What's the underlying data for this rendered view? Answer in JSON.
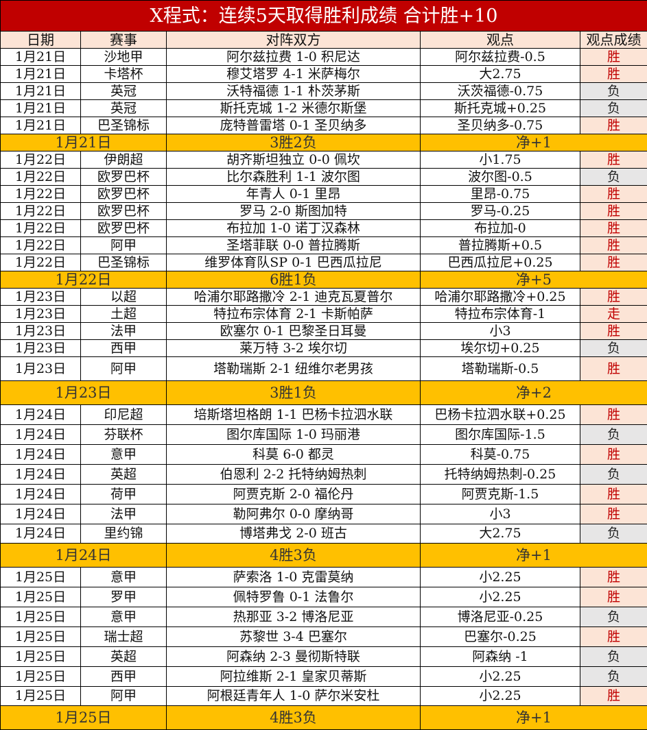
{
  "title": "X程式：连续5天取得胜利成绩 合计胜+10",
  "headers": [
    "日期",
    "赛事",
    "对阵双方",
    "观点",
    "观点成绩"
  ],
  "colors": {
    "title_bg": "#c00000",
    "header_bg": "#fce4d6",
    "summary_bg": "#ffc000",
    "win_bg": "#fce4d6",
    "win_text": "#c00000",
    "lose_bg": "#e7e6e6"
  },
  "groups": [
    {
      "rows": [
        [
          "1月21日",
          "沙地甲",
          "阿尔兹拉费 1-0 积尼达",
          "阿尔兹拉费-0.5",
          "胜"
        ],
        [
          "1月21日",
          "卡塔杯",
          "穆艾塔罗 4-1 米萨梅尔",
          "大2.75",
          "胜"
        ],
        [
          "1月21日",
          "英冠",
          "沃特福德 1-1 朴茨茅斯",
          "沃茨福德-0.75",
          "负"
        ],
        [
          "1月21日",
          "英冠",
          "斯托克城 1-2 米德尔斯堡",
          "斯托克城+0.25",
          "负"
        ],
        [
          "1月21日",
          "巴圣锦标",
          "庞特普雷塔 0-1 圣贝纳多",
          "圣贝纳多-0.75",
          "胜"
        ]
      ],
      "summary": [
        "1月21日",
        "3胜2负",
        "净+1"
      ]
    },
    {
      "rows": [
        [
          "1月22日",
          "伊朗超",
          "胡齐斯坦独立 0-0 佩坎",
          "小1.75",
          "胜"
        ],
        [
          "1月22日",
          "欧罗巴杯",
          "比尔森胜利 1-1 波尔图",
          "波尔图-0.5",
          "负"
        ],
        [
          "1月22日",
          "欧罗巴杯",
          "年青人 0-1 里昂",
          "里昂-0.75",
          "胜"
        ],
        [
          "1月22日",
          "欧罗巴杯",
          "罗马 2-0 斯图加特",
          "罗马-0.25",
          "胜"
        ],
        [
          "1月22日",
          "欧罗巴杯",
          "布拉加 1-0 诺丁汉森林",
          "布拉加-0",
          "胜"
        ],
        [
          "1月22日",
          "阿甲",
          "圣塔菲联 0-0 普拉腾斯",
          "普拉腾斯+0.5",
          "胜"
        ],
        [
          "1月22日",
          "巴圣锦标",
          "维罗体育队SP 0-1 巴西瓜拉尼",
          "巴西瓜拉尼+0.25",
          "胜"
        ]
      ],
      "summary": [
        "1月22日",
        "6胜1负",
        "净+5"
      ]
    },
    {
      "rows": [
        [
          "1月23日",
          "以超",
          "哈浦尔耶路撒冷 2-1 迪克瓦夏普尔",
          "哈浦尔耶路撒冷+0.25",
          "胜"
        ],
        [
          "1月23日",
          "土超",
          "特拉布宗体育 2-1 卡斯帕萨",
          "特拉布宗体育-1",
          "走"
        ],
        [
          "1月23日",
          "法甲",
          "欧塞尔 0-1 巴黎圣日耳曼",
          "小3",
          "胜"
        ],
        [
          "1月23日",
          "西甲",
          "莱万特 3-2 埃尔切",
          "埃尔切+0.25",
          "负"
        ],
        [
          "1月23日",
          "阿甲",
          "塔勒瑞斯 2-1 纽维尔老男孩",
          "塔勒瑞斯-0.5",
          "胜"
        ]
      ],
      "summary": [
        "1月23日",
        "3胜1负",
        "净+2"
      ]
    },
    {
      "rows": [
        [
          "1月24日",
          "印尼超",
          "培斯塔坦格朗 1-1 巴杨卡拉泗水联",
          "巴杨卡拉泗水联+0.25",
          "胜"
        ],
        [
          "1月24日",
          "芬联杯",
          "图尔库国际 1-0 玛丽港",
          "图尔库国际-1.5",
          "负"
        ],
        [
          "1月24日",
          "意甲",
          "科莫 6-0 都灵",
          "科莫-0.75",
          "胜"
        ],
        [
          "1月24日",
          "英超",
          "伯恩利 2-2 托特纳姆热刺",
          "托特纳姆热刺-0.25",
          "负"
        ],
        [
          "1月24日",
          "荷甲",
          "阿贾克斯 2-0 福伦丹",
          "阿贾克斯-1.5",
          "胜"
        ],
        [
          "1月24日",
          "法甲",
          "勒阿弗尔 0-0 摩纳哥",
          "小3",
          "胜"
        ],
        [
          "1月24日",
          "里约锦",
          "博塔弗戈 2-0 班古",
          "大2.75",
          "负"
        ]
      ],
      "summary": [
        "1月24日",
        "4胜3负",
        "净+1"
      ]
    },
    {
      "rows": [
        [
          "1月25日",
          "意甲",
          "萨索洛 1-0 克雷莫纳",
          "小2.25",
          "胜"
        ],
        [
          "1月25日",
          "罗甲",
          "佩特罗鲁 0-1 法鲁尔",
          "小2.25",
          "胜"
        ],
        [
          "1月25日",
          "意甲",
          "热那亚 3-2 博洛尼亚",
          "博洛尼亚-0.25",
          "负"
        ],
        [
          "1月25日",
          "瑞士超",
          "苏黎世 3-4 巴塞尔",
          "巴塞尔-0.25",
          "胜"
        ],
        [
          "1月25日",
          "英超",
          "阿森纳 2-3 曼彻斯特联",
          "阿森纳 -1",
          "负"
        ],
        [
          "1月25日",
          "西甲",
          "阿拉维斯 2-1 皇家贝蒂斯",
          "小2.25",
          "负"
        ],
        [
          "1月25日",
          "阿甲",
          "阿根廷青年人 1-0 萨尔米安杜",
          "小2.25",
          "胜"
        ]
      ],
      "summary": [
        "1月25日",
        "4胜3负",
        "净+1"
      ]
    }
  ]
}
